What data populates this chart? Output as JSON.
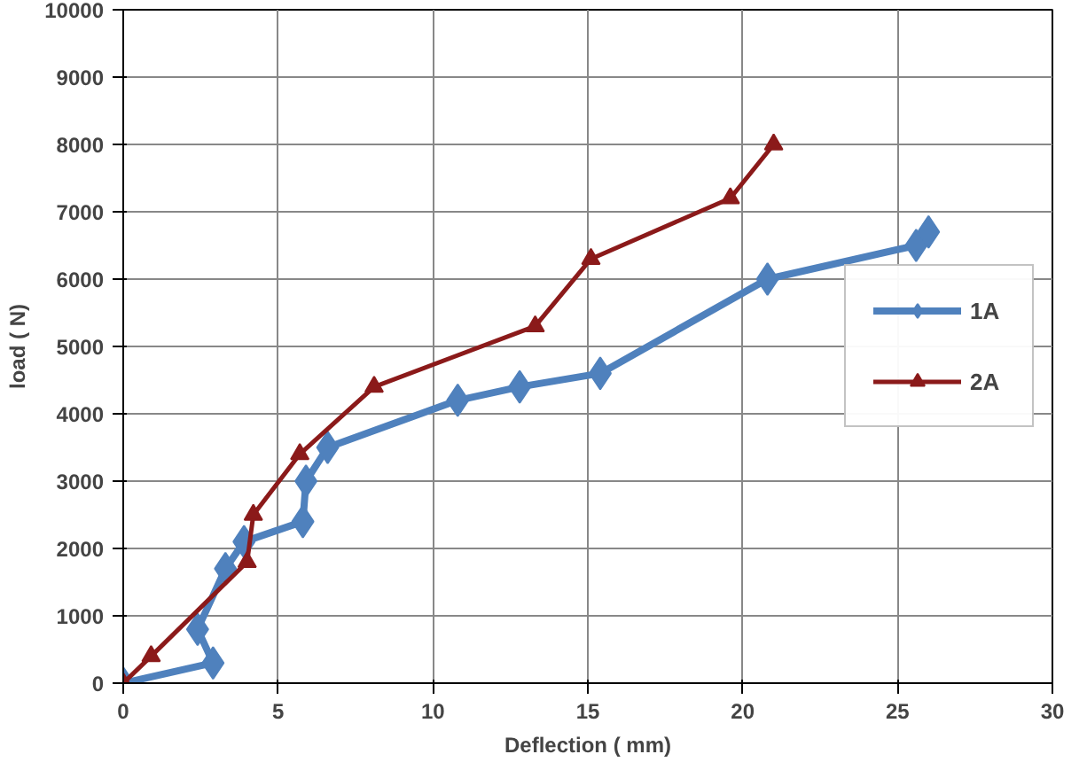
{
  "chart_data": {
    "type": "line",
    "xlabel": "Deflection ( mm)",
    "ylabel": "load ( N)",
    "xlim": [
      0,
      30
    ],
    "xticks": [
      0,
      5,
      10,
      15,
      20,
      25,
      30
    ],
    "ylim": [
      0,
      10000
    ],
    "yticks": [
      0,
      1000,
      2000,
      3000,
      4000,
      5000,
      6000,
      7000,
      8000,
      9000,
      10000
    ],
    "grid": true,
    "legend": "right",
    "series": [
      {
        "name": "1A",
        "color": "#4f81bd",
        "marker": "diamond",
        "x": [
          0,
          2.9,
          2.4,
          3.3,
          3.9,
          5.8,
          5.9,
          6.6,
          10.8,
          12.8,
          15.4,
          20.8,
          25.6,
          26.0
        ],
        "values": [
          0,
          300,
          800,
          1700,
          2100,
          2400,
          3000,
          3500,
          4200,
          4400,
          4600,
          6000,
          6500,
          6700
        ]
      },
      {
        "name": "2A",
        "color": "#8b1a1a",
        "marker": "triangle",
        "x": [
          0,
          0.9,
          4.0,
          4.2,
          5.7,
          8.1,
          13.3,
          15.1,
          19.6,
          21.0
        ],
        "values": [
          0,
          400,
          1800,
          2500,
          3400,
          4400,
          5300,
          6300,
          7200,
          8000
        ]
      }
    ]
  }
}
